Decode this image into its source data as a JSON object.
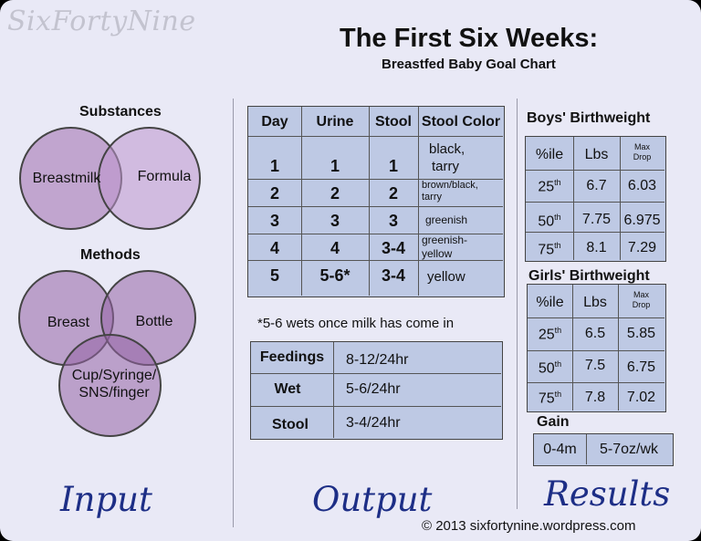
{
  "watermark": "SixFortyNine",
  "title": "The First Six Weeks:",
  "subtitle": "Breastfed Baby Goal Chart",
  "input": {
    "substances_heading": "Substances",
    "substances": [
      "Breastmilk",
      "Formula"
    ],
    "methods_heading": "Methods",
    "methods": [
      "Breast",
      "Bottle",
      "Cup/Syringe/",
      "SNS/finger"
    ],
    "footer": "Input"
  },
  "output": {
    "table": {
      "headers": [
        "Day",
        "Urine",
        "Stool",
        "Stool Color"
      ],
      "rows": [
        {
          "day": "1",
          "urine": "1",
          "stool": "1",
          "color_l1": "black,",
          "color_l2": "tarry"
        },
        {
          "day": "2",
          "urine": "2",
          "stool": "2",
          "color_l1": "brown/black,",
          "color_l2": "tarry"
        },
        {
          "day": "3",
          "urine": "3",
          "stool": "3",
          "color_l1": "greenish",
          "color_l2": ""
        },
        {
          "day": "4",
          "urine": "4",
          "stool": "3-4",
          "color_l1": "greenish-",
          "color_l2": "yellow"
        },
        {
          "day": "5",
          "urine": "5-6*",
          "stool": "3-4",
          "color_l1": "yellow",
          "color_l2": ""
        }
      ]
    },
    "note": "*5-6 wets once milk has come in",
    "summary": [
      {
        "label": "Feedings",
        "value": "8-12/24hr"
      },
      {
        "label": "Wet",
        "value": "5-6/24hr"
      },
      {
        "label": "Stool",
        "value": "3-4/24hr"
      }
    ],
    "footer": "Output"
  },
  "results": {
    "boys_heading": "Boys' Birthweight",
    "girls_heading": "Girls' Birthweight",
    "col_headers": {
      "pct": "%ile",
      "lbs": "Lbs",
      "drop_l1": "Max",
      "drop_l2": "Drop"
    },
    "th": "th",
    "boys": [
      {
        "pct": "25",
        "lbs": "6.7",
        "drop": "6.03"
      },
      {
        "pct": "50",
        "lbs": "7.75",
        "drop": "6.975"
      },
      {
        "pct": "75",
        "lbs": "8.1",
        "drop": "7.29"
      }
    ],
    "girls": [
      {
        "pct": "25",
        "lbs": "6.5",
        "drop": "5.85"
      },
      {
        "pct": "50",
        "lbs": "7.5",
        "drop": "6.75"
      },
      {
        "pct": "75",
        "lbs": "7.8",
        "drop": "7.02"
      }
    ],
    "gain_heading": "Gain",
    "gain_period": "0-4m",
    "gain_value": "5-7oz/wk",
    "footer": "Results"
  },
  "copyright": "© 2013 sixfortynine.wordpress.com",
  "colors": {
    "table_fill": "#bec9e4",
    "circle_fill": "#b79ac7",
    "script_blue": "#1d2e86"
  }
}
